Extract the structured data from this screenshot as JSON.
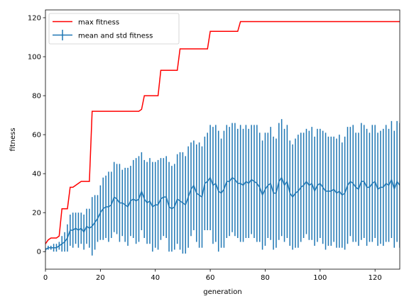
{
  "chart_data": {
    "type": "line",
    "xlabel": "generation",
    "ylabel": "fitness",
    "xlim": [
      0,
      129
    ],
    "ylim": [
      -9,
      124
    ],
    "x_ticks": [
      0,
      20,
      40,
      60,
      80,
      100,
      120
    ],
    "y_ticks": [
      0,
      20,
      40,
      60,
      80,
      100,
      120
    ],
    "x_tick_labels": [
      "0",
      "20",
      "40",
      "60",
      "80",
      "100",
      "120"
    ],
    "y_tick_labels": [
      "0",
      "20",
      "40",
      "60",
      "80",
      "100",
      "120"
    ],
    "legend": {
      "position": "top-left",
      "entries": [
        "max fitness",
        "mean and std fitness"
      ]
    },
    "grid": false,
    "series": [
      {
        "name": "max fitness",
        "kind": "line",
        "color": "#ff0000",
        "x": [
          0,
          1,
          2,
          3,
          4,
          5,
          6,
          7,
          8,
          9,
          10,
          11,
          12,
          13,
          14,
          15,
          16,
          17,
          18,
          19,
          20,
          21,
          22,
          23,
          24,
          25,
          26,
          27,
          28,
          29,
          30,
          31,
          32,
          33,
          34,
          35,
          36,
          37,
          38,
          39,
          40,
          41,
          42,
          43,
          44,
          45,
          46,
          47,
          48,
          49,
          50,
          51,
          52,
          53,
          54,
          55,
          56,
          57,
          58,
          59,
          60,
          61,
          62,
          63,
          64,
          65,
          66,
          67,
          68,
          69,
          70,
          71,
          72,
          73,
          74,
          75,
          76,
          77,
          78,
          79,
          80,
          81,
          82,
          83,
          84,
          85,
          86,
          87,
          88,
          89,
          90,
          91,
          92,
          93,
          94,
          95,
          96,
          97,
          98,
          99,
          100,
          101,
          102,
          103,
          104,
          105,
          106,
          107,
          108,
          109,
          110,
          111,
          112,
          113,
          114,
          115,
          116,
          117,
          118,
          119,
          120,
          121,
          122,
          123,
          124,
          125,
          126,
          127,
          128,
          129
        ],
        "y": [
          4,
          6,
          7,
          7,
          7,
          8,
          22,
          22,
          22,
          33,
          33,
          34,
          35,
          36,
          36,
          36,
          36,
          72,
          72,
          72,
          72,
          72,
          72,
          72,
          72,
          72,
          72,
          72,
          72,
          72,
          72,
          72,
          72,
          72,
          72,
          73,
          80,
          80,
          80,
          80,
          80,
          80,
          93,
          93,
          93,
          93,
          93,
          93,
          93,
          104,
          104,
          104,
          104,
          104,
          104,
          104,
          104,
          104,
          104,
          104,
          113,
          113,
          113,
          113,
          113,
          113,
          113,
          113,
          113,
          113,
          113,
          118,
          118,
          118,
          118,
          118,
          118,
          118,
          118,
          118,
          118,
          118,
          118,
          118,
          118,
          118,
          118,
          118,
          118,
          118,
          118,
          118,
          118,
          118,
          118,
          118,
          118,
          118,
          118,
          118,
          118,
          118,
          118,
          118,
          118,
          118,
          118,
          118,
          118,
          118,
          118,
          118,
          118,
          118,
          118,
          118,
          118,
          118,
          118,
          118,
          118,
          118,
          118,
          118,
          118,
          118,
          118,
          118,
          118,
          118
        ]
      },
      {
        "name": "mean and std fitness",
        "kind": "errorbar",
        "color": "#1f77b4",
        "x": [
          0,
          1,
          2,
          3,
          4,
          5,
          6,
          7,
          8,
          9,
          10,
          11,
          12,
          13,
          14,
          15,
          16,
          17,
          18,
          19,
          20,
          21,
          22,
          23,
          24,
          25,
          26,
          27,
          28,
          29,
          30,
          31,
          32,
          33,
          34,
          35,
          36,
          37,
          38,
          39,
          40,
          41,
          42,
          43,
          44,
          45,
          46,
          47,
          48,
          49,
          50,
          51,
          52,
          53,
          54,
          55,
          56,
          57,
          58,
          59,
          60,
          61,
          62,
          63,
          64,
          65,
          66,
          67,
          68,
          69,
          70,
          71,
          72,
          73,
          74,
          75,
          76,
          77,
          78,
          79,
          80,
          81,
          82,
          83,
          84,
          85,
          86,
          87,
          88,
          89,
          90,
          91,
          92,
          93,
          94,
          95,
          96,
          97,
          98,
          99,
          100,
          101,
          102,
          103,
          104,
          105,
          106,
          107,
          108,
          109,
          110,
          111,
          112,
          113,
          114,
          115,
          116,
          117,
          118,
          119,
          120,
          121,
          122,
          123,
          124,
          125,
          126,
          127,
          128,
          129
        ],
        "mean": [
          1,
          2,
          2,
          2,
          2,
          3,
          4,
          5,
          7,
          11,
          11,
          12,
          11,
          12,
          10,
          13,
          12,
          13,
          15,
          17,
          20,
          22,
          23,
          23,
          24,
          28,
          27,
          25,
          25,
          24,
          23,
          26,
          27,
          26,
          27,
          31,
          27,
          25,
          26,
          23,
          24,
          24,
          27,
          28,
          28,
          23,
          22,
          23,
          27,
          26,
          25,
          24,
          28,
          32,
          34,
          30,
          29,
          28,
          35,
          36,
          38,
          34,
          35,
          31,
          30,
          32,
          36,
          36,
          38,
          37,
          35,
          35,
          34,
          36,
          35,
          37,
          36,
          35,
          33,
          29,
          32,
          34,
          35,
          30,
          30,
          36,
          38,
          34,
          36,
          30,
          28,
          30,
          31,
          33,
          34,
          36,
          34,
          35,
          31,
          34,
          35,
          33,
          31,
          31,
          31,
          32,
          30,
          31,
          29,
          30,
          34,
          36,
          35,
          33,
          32,
          36,
          36,
          33,
          33,
          35,
          36,
          32,
          33,
          33,
          35,
          34,
          37,
          32,
          36,
          34
        ],
        "std": [
          1,
          1,
          1,
          2,
          2,
          2,
          4,
          5,
          7,
          8,
          9,
          8,
          9,
          8,
          9,
          9,
          10,
          15,
          14,
          12,
          14,
          16,
          16,
          18,
          17,
          18,
          18,
          20,
          17,
          19,
          20,
          18,
          20,
          22,
          22,
          20,
          20,
          21,
          22,
          23,
          22,
          23,
          21,
          20,
          21,
          23,
          22,
          22,
          23,
          25,
          26,
          25,
          26,
          24,
          23,
          25,
          27,
          26,
          24,
          25,
          27,
          30,
          30,
          31,
          28,
          30,
          29,
          28,
          28,
          29,
          28,
          30,
          29,
          29,
          28,
          28,
          29,
          30,
          28,
          28,
          29,
          27,
          29,
          29,
          28,
          30,
          30,
          29,
          29,
          27,
          27,
          28,
          29,
          28,
          27,
          27,
          28,
          29,
          28,
          29,
          28,
          29,
          30,
          28,
          28,
          27,
          28,
          29,
          27,
          29,
          30,
          28,
          30,
          28,
          29,
          30,
          29,
          30,
          28,
          30,
          29,
          29,
          29,
          30,
          30,
          29,
          30,
          30,
          31,
          32
        ]
      }
    ]
  }
}
